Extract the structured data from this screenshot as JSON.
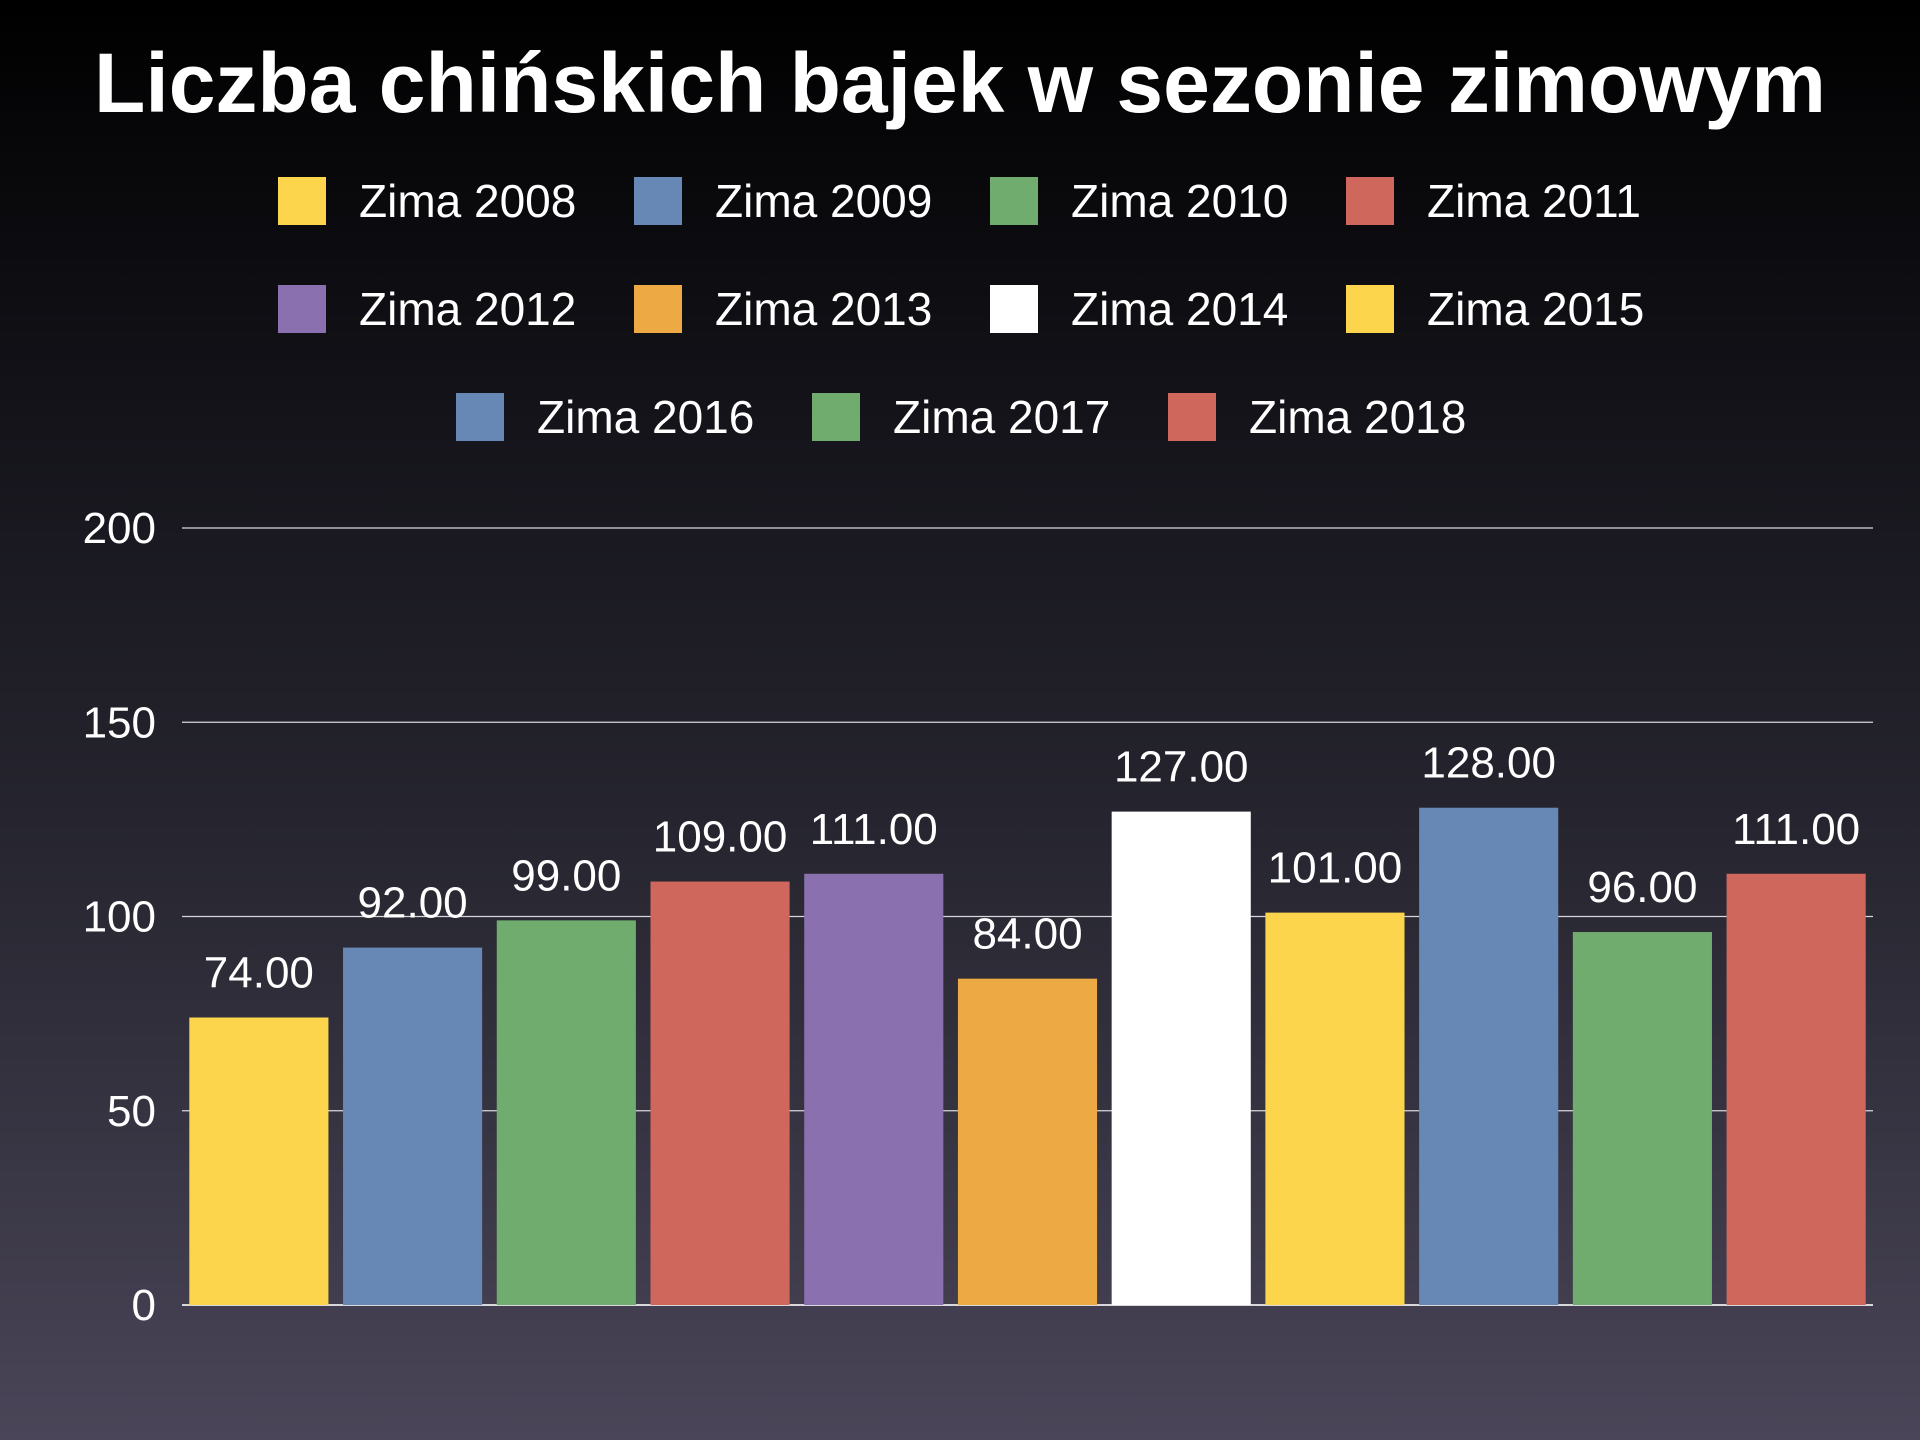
{
  "chart_data": {
    "type": "bar",
    "title": "Liczba chińskich bajek w sezonie zimowym",
    "xlabel": "",
    "ylabel": "",
    "ylim": [
      0,
      200
    ],
    "yticks": [
      0,
      50,
      100,
      150,
      200
    ],
    "grid": true,
    "legend_position": "top",
    "value_label_format": "2-decimals",
    "series": [
      {
        "name": "Zima 2008",
        "value": 74,
        "label": "74.00",
        "color": "#fcd54d"
      },
      {
        "name": "Zima 2009",
        "value": 92,
        "label": "92.00",
        "color": "#6787b5"
      },
      {
        "name": "Zima 2010",
        "value": 99,
        "label": "99.00",
        "color": "#70ac6d"
      },
      {
        "name": "Zima 2011",
        "value": 109,
        "label": "109.00",
        "color": "#d0675d"
      },
      {
        "name": "Zima 2012",
        "value": 111,
        "label": "111.00",
        "color": "#8a70ae"
      },
      {
        "name": "Zima 2013",
        "value": 84,
        "label": "84.00",
        "color": "#eda943"
      },
      {
        "name": "Zima 2014",
        "value": 127,
        "label": "127.00",
        "color": "#ffffff"
      },
      {
        "name": "Zima 2015",
        "value": 101,
        "label": "101.00",
        "color": "#fcd54d"
      },
      {
        "name": "Zima 2016",
        "value": 128,
        "label": "128.00",
        "color": "#6787b5"
      },
      {
        "name": "Zima 2017",
        "value": 96,
        "label": "96.00",
        "color": "#70ac6d"
      },
      {
        "name": "Zima 2018",
        "value": 111,
        "label": "111.00",
        "color": "#d0675d"
      }
    ]
  }
}
